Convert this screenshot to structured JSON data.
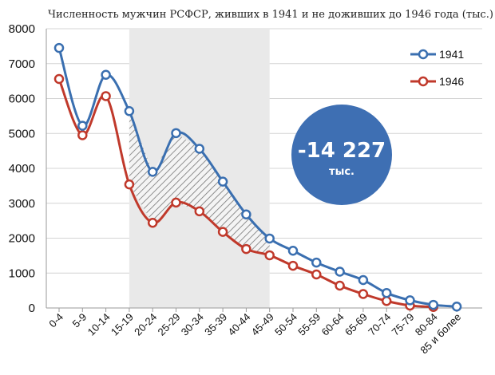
{
  "chart_data": {
    "type": "line",
    "title": "Численность мужчин РСФСР, живших в 1941 и не доживших до 1946 года (тыс.)",
    "categories": [
      "0-4",
      "5-9",
      "10-14",
      "15-19",
      "20-24",
      "25-29",
      "30-34",
      "35-39",
      "40-44",
      "45-49",
      "50-54",
      "55-59",
      "60-64",
      "65-69",
      "70-74",
      "75-79",
      "80-84",
      "85 и более"
    ],
    "series": [
      {
        "name": "1941",
        "color": "#3a6fb0",
        "values": [
          7450,
          5220,
          6680,
          5640,
          3900,
          5010,
          4560,
          3620,
          2680,
          1990,
          1640,
          1300,
          1040,
          800,
          430,
          220,
          90,
          40
        ]
      },
      {
        "name": "1946",
        "color": "#c0392b",
        "values": [
          6560,
          4950,
          6070,
          3540,
          2440,
          3020,
          2770,
          2180,
          1690,
          1510,
          1210,
          960,
          640,
          400,
          200,
          70,
          30,
          null
        ]
      }
    ],
    "ylim": [
      0,
      8000
    ],
    "yticks": [
      0,
      1000,
      2000,
      3000,
      4000,
      5000,
      6000,
      7000,
      8000
    ],
    "grid": true,
    "legend": "top-right",
    "highlight_range": [
      "15-19",
      "45-49"
    ],
    "annotation": {
      "value": "-14 227",
      "unit": "тыс.",
      "color": "#3e6fb3"
    }
  }
}
